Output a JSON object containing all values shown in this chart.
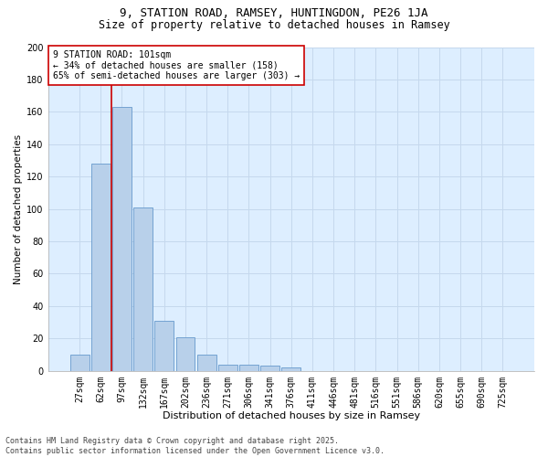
{
  "title1": "9, STATION ROAD, RAMSEY, HUNTINGDON, PE26 1JA",
  "title2": "Size of property relative to detached houses in Ramsey",
  "xlabel": "Distribution of detached houses by size in Ramsey",
  "ylabel": "Number of detached properties",
  "categories": [
    "27sqm",
    "62sqm",
    "97sqm",
    "132sqm",
    "167sqm",
    "202sqm",
    "236sqm",
    "271sqm",
    "306sqm",
    "341sqm",
    "376sqm",
    "411sqm",
    "446sqm",
    "481sqm",
    "516sqm",
    "551sqm",
    "586sqm",
    "620sqm",
    "655sqm",
    "690sqm",
    "725sqm"
  ],
  "values": [
    10,
    128,
    163,
    101,
    31,
    21,
    10,
    4,
    4,
    3,
    2,
    0,
    0,
    0,
    0,
    0,
    0,
    0,
    0,
    0,
    0
  ],
  "bar_color": "#b8d0ea",
  "bar_edge_color": "#6699cc",
  "vline_color": "#cc0000",
  "annotation_text": "9 STATION ROAD: 101sqm\n← 34% of detached houses are smaller (158)\n65% of semi-detached houses are larger (303) →",
  "annotation_box_color": "#ffffff",
  "annotation_box_edge": "#cc0000",
  "annotation_fontsize": 7,
  "ylim": [
    0,
    200
  ],
  "yticks": [
    0,
    20,
    40,
    60,
    80,
    100,
    120,
    140,
    160,
    180,
    200
  ],
  "grid_color": "#c5d8ed",
  "background_color": "#ddeeff",
  "footer_text": "Contains HM Land Registry data © Crown copyright and database right 2025.\nContains public sector information licensed under the Open Government Licence v3.0.",
  "title1_fontsize": 9,
  "title2_fontsize": 8.5,
  "xlabel_fontsize": 8,
  "ylabel_fontsize": 7.5,
  "tick_fontsize": 7,
  "footer_fontsize": 6
}
